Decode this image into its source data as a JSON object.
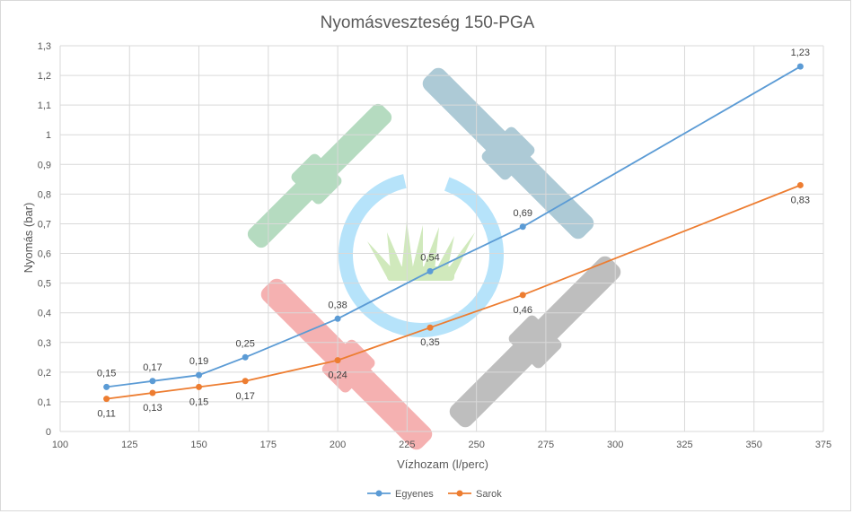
{
  "chart_data": {
    "type": "line",
    "title": "Nyomásveszteség 150-PGA",
    "xlabel": "Vízhozam (l/perc)",
    "ylabel": "Nyomás (bar)",
    "xlim": [
      100,
      375
    ],
    "ylim": [
      0,
      1.3
    ],
    "x_ticks": [
      "100",
      "125",
      "150",
      "175",
      "200",
      "225",
      "250",
      "275",
      "300",
      "325",
      "350",
      "375"
    ],
    "y_ticks": [
      "0",
      "0,1",
      "0,2",
      "0,3",
      "0,4",
      "0,5",
      "0,6",
      "0,7",
      "0,8",
      "0,9",
      "1",
      "1,1",
      "1,2",
      "1,3"
    ],
    "grid": "horizontal and vertical",
    "legend_position": "bottom",
    "series": [
      {
        "name": "Egyenes",
        "color": "#5b9bd5",
        "x": [
          116.7,
          133.3,
          150,
          166.7,
          200,
          233.3,
          266.7,
          366.7
        ],
        "y": [
          0.15,
          0.17,
          0.19,
          0.25,
          0.38,
          0.54,
          0.69,
          1.23
        ],
        "labels": [
          "0,15",
          "0,17",
          "0,19",
          "0,25",
          "0,38",
          "0,54",
          "0,69",
          "1,23"
        ],
        "label_position": "above"
      },
      {
        "name": "Sarok",
        "color": "#ed7d31",
        "x": [
          116.7,
          133.3,
          150,
          166.7,
          200,
          233.3,
          266.7,
          366.7
        ],
        "y": [
          0.11,
          0.13,
          0.15,
          0.17,
          0.24,
          0.35,
          0.46,
          0.83
        ],
        "labels": [
          "0,11",
          "0,13",
          "0,15",
          "0,17",
          "0,24",
          "0,35",
          "0,46",
          "0,83"
        ],
        "label_position": "below"
      }
    ]
  },
  "colors": {
    "gridline": "#d9d9d9",
    "text": "#595959",
    "watermark_green": "#a8d5b5",
    "watermark_blue": "#9fc1cf",
    "watermark_red": "#f4a3a3",
    "watermark_gray": "#b3b3b3",
    "watermark_ring": "#a9defa",
    "watermark_grass": "#c8e6b0"
  },
  "watermark": "sprinkler-logo"
}
